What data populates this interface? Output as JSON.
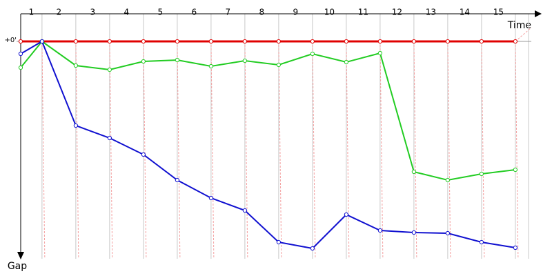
{
  "chart_data": {
    "type": "line",
    "x_label": "Time",
    "y_label": "Gap",
    "categories": [
      "1",
      "2",
      "3",
      "4",
      "5",
      "6",
      "7",
      "8",
      "9",
      "10",
      "11",
      "12",
      "13",
      "14",
      "15"
    ],
    "x": [
      0.37,
      1,
      2,
      3,
      4,
      5,
      6,
      7,
      8,
      9,
      10,
      11,
      12,
      13,
      14,
      15
    ],
    "xlim": [
      0.37,
      15.39
    ],
    "xticks": [
      1,
      2,
      3,
      4,
      5,
      6,
      7,
      8,
      9,
      10,
      11,
      12,
      13,
      14,
      15
    ],
    "ylim": [
      0,
      310
    ],
    "yticks": [
      {
        "value": 0,
        "label": "+0'"
      }
    ],
    "y_inverted": true,
    "series": [
      {
        "color": "#e00000",
        "values": [
          0,
          0,
          0,
          0,
          0,
          0,
          0,
          0,
          0,
          0,
          0,
          0,
          0,
          0,
          0,
          0
        ]
      },
      {
        "color": "#22cc22",
        "values": [
          38,
          0,
          35,
          41,
          29,
          27,
          36,
          28,
          34,
          18,
          30,
          17,
          189,
          201,
          192,
          186
        ]
      },
      {
        "color": "#1010d0",
        "values": [
          18,
          0,
          122,
          140,
          164,
          201,
          227,
          245,
          291,
          300,
          251,
          274,
          277,
          278,
          291,
          299
        ]
      }
    ]
  }
}
